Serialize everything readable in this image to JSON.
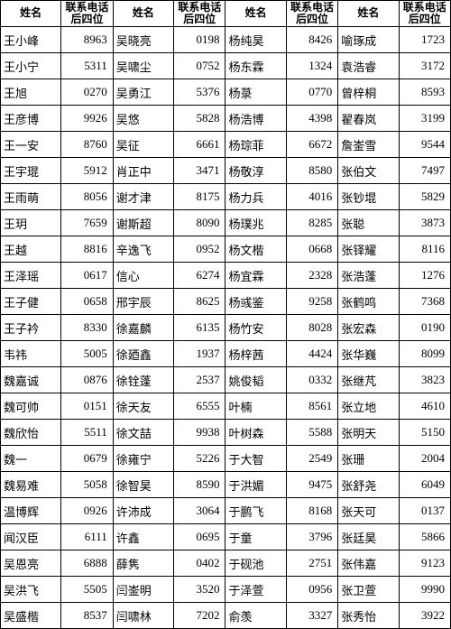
{
  "headers": {
    "name": "姓名",
    "phone1": "联系电话",
    "phone2": "后四位"
  },
  "cols": [
    [
      [
        "王小峰",
        "8963"
      ],
      [
        "王小宁",
        "5311"
      ],
      [
        "王旭",
        "0270"
      ],
      [
        "王彦博",
        "9926"
      ],
      [
        "王一安",
        "8760"
      ],
      [
        "王宇琨",
        "5912"
      ],
      [
        "王雨萌",
        "8056"
      ],
      [
        "王玥",
        "7659"
      ],
      [
        "王越",
        "8816"
      ],
      [
        "王泽瑶",
        "0617"
      ],
      [
        "王子健",
        "0658"
      ],
      [
        "王子衿",
        "8330"
      ],
      [
        "韦祎",
        "5005"
      ],
      [
        "魏嘉诚",
        "0876"
      ],
      [
        "魏可帅",
        "0151"
      ],
      [
        "魏欣怡",
        "5511"
      ],
      [
        "魏一",
        "0679"
      ],
      [
        "魏易难",
        "5058"
      ],
      [
        "温博辉",
        "0926"
      ],
      [
        "闻汉臣",
        "6111"
      ],
      [
        "吴恩亮",
        "6888"
      ],
      [
        "吴洪飞",
        "5505"
      ],
      [
        "吴盛楷",
        "8537"
      ]
    ],
    [
      [
        "吴晓亮",
        "0198"
      ],
      [
        "吴啸尘",
        "0752"
      ],
      [
        "吴勇江",
        "5376"
      ],
      [
        "吴悠",
        "5828"
      ],
      [
        "吴征",
        "6661"
      ],
      [
        "肖正中",
        "3471"
      ],
      [
        "谢才津",
        "8175"
      ],
      [
        "谢斯超",
        "8090"
      ],
      [
        "辛逸飞",
        "0952"
      ],
      [
        "信心",
        "6274"
      ],
      [
        "邢宇辰",
        "8625"
      ],
      [
        "徐嘉麟",
        "6135"
      ],
      [
        "徐廼鑫",
        "1937"
      ],
      [
        "徐铨蓬",
        "2537"
      ],
      [
        "徐天友",
        "6555"
      ],
      [
        "徐文喆",
        "9938"
      ],
      [
        "徐雍宁",
        "5226"
      ],
      [
        "徐智昊",
        "8590"
      ],
      [
        "许沛成",
        "3064"
      ],
      [
        "许鑫",
        "0695"
      ],
      [
        "薛隽",
        "0402"
      ],
      [
        "闫崟明",
        "3520"
      ],
      [
        "闫啸林",
        "7202"
      ]
    ],
    [
      [
        "杨纯昊",
        "8426"
      ],
      [
        "杨东霖",
        "1324"
      ],
      [
        "杨菉",
        "0770"
      ],
      [
        "杨浩博",
        "4398"
      ],
      [
        "杨琮菲",
        "6672"
      ],
      [
        "杨敬淳",
        "8580"
      ],
      [
        "杨力兵",
        "4016"
      ],
      [
        "杨璞兆",
        "8285"
      ],
      [
        "杨文楷",
        "0668"
      ],
      [
        "杨宜霖",
        "2328"
      ],
      [
        "杨彧鉴",
        "9258"
      ],
      [
        "杨竹安",
        "8028"
      ],
      [
        "杨梓茜",
        "4424"
      ],
      [
        "姚俊韬",
        "0332"
      ],
      [
        "叶楠",
        "8561"
      ],
      [
        "叶树森",
        "5588"
      ],
      [
        "于大智",
        "2549"
      ],
      [
        "于洪媚",
        "9475"
      ],
      [
        "于鹏飞",
        "8168"
      ],
      [
        "于童",
        "3796"
      ],
      [
        "于砚池",
        "2751"
      ],
      [
        "于泽萱",
        "0956"
      ],
      [
        "俞羡",
        "3327"
      ]
    ],
    [
      [
        "喻琢成",
        "1723"
      ],
      [
        "袁浩睿",
        "3172"
      ],
      [
        "曾梓桐",
        "8593"
      ],
      [
        "翟春岚",
        "3199"
      ],
      [
        "詹崟雪",
        "9544"
      ],
      [
        "张伯文",
        "7497"
      ],
      [
        "张钞堒",
        "5829"
      ],
      [
        "张聪",
        "3873"
      ],
      [
        "张铎耀",
        "8116"
      ],
      [
        "张浩蓬",
        "1276"
      ],
      [
        "张鹤鸣",
        "7368"
      ],
      [
        "张宏森",
        "0190"
      ],
      [
        "张华巍",
        "8099"
      ],
      [
        "张继芃",
        "3823"
      ],
      [
        "张立地",
        "4610"
      ],
      [
        "张明天",
        "5150"
      ],
      [
        "张珊",
        "2004"
      ],
      [
        "张舒尧",
        "6049"
      ],
      [
        "张天可",
        "0137"
      ],
      [
        "张廷昊",
        "5866"
      ],
      [
        "张伟嘉",
        "9123"
      ],
      [
        "张卫萱",
        "9990"
      ],
      [
        "张秀怡",
        "3922"
      ]
    ]
  ]
}
